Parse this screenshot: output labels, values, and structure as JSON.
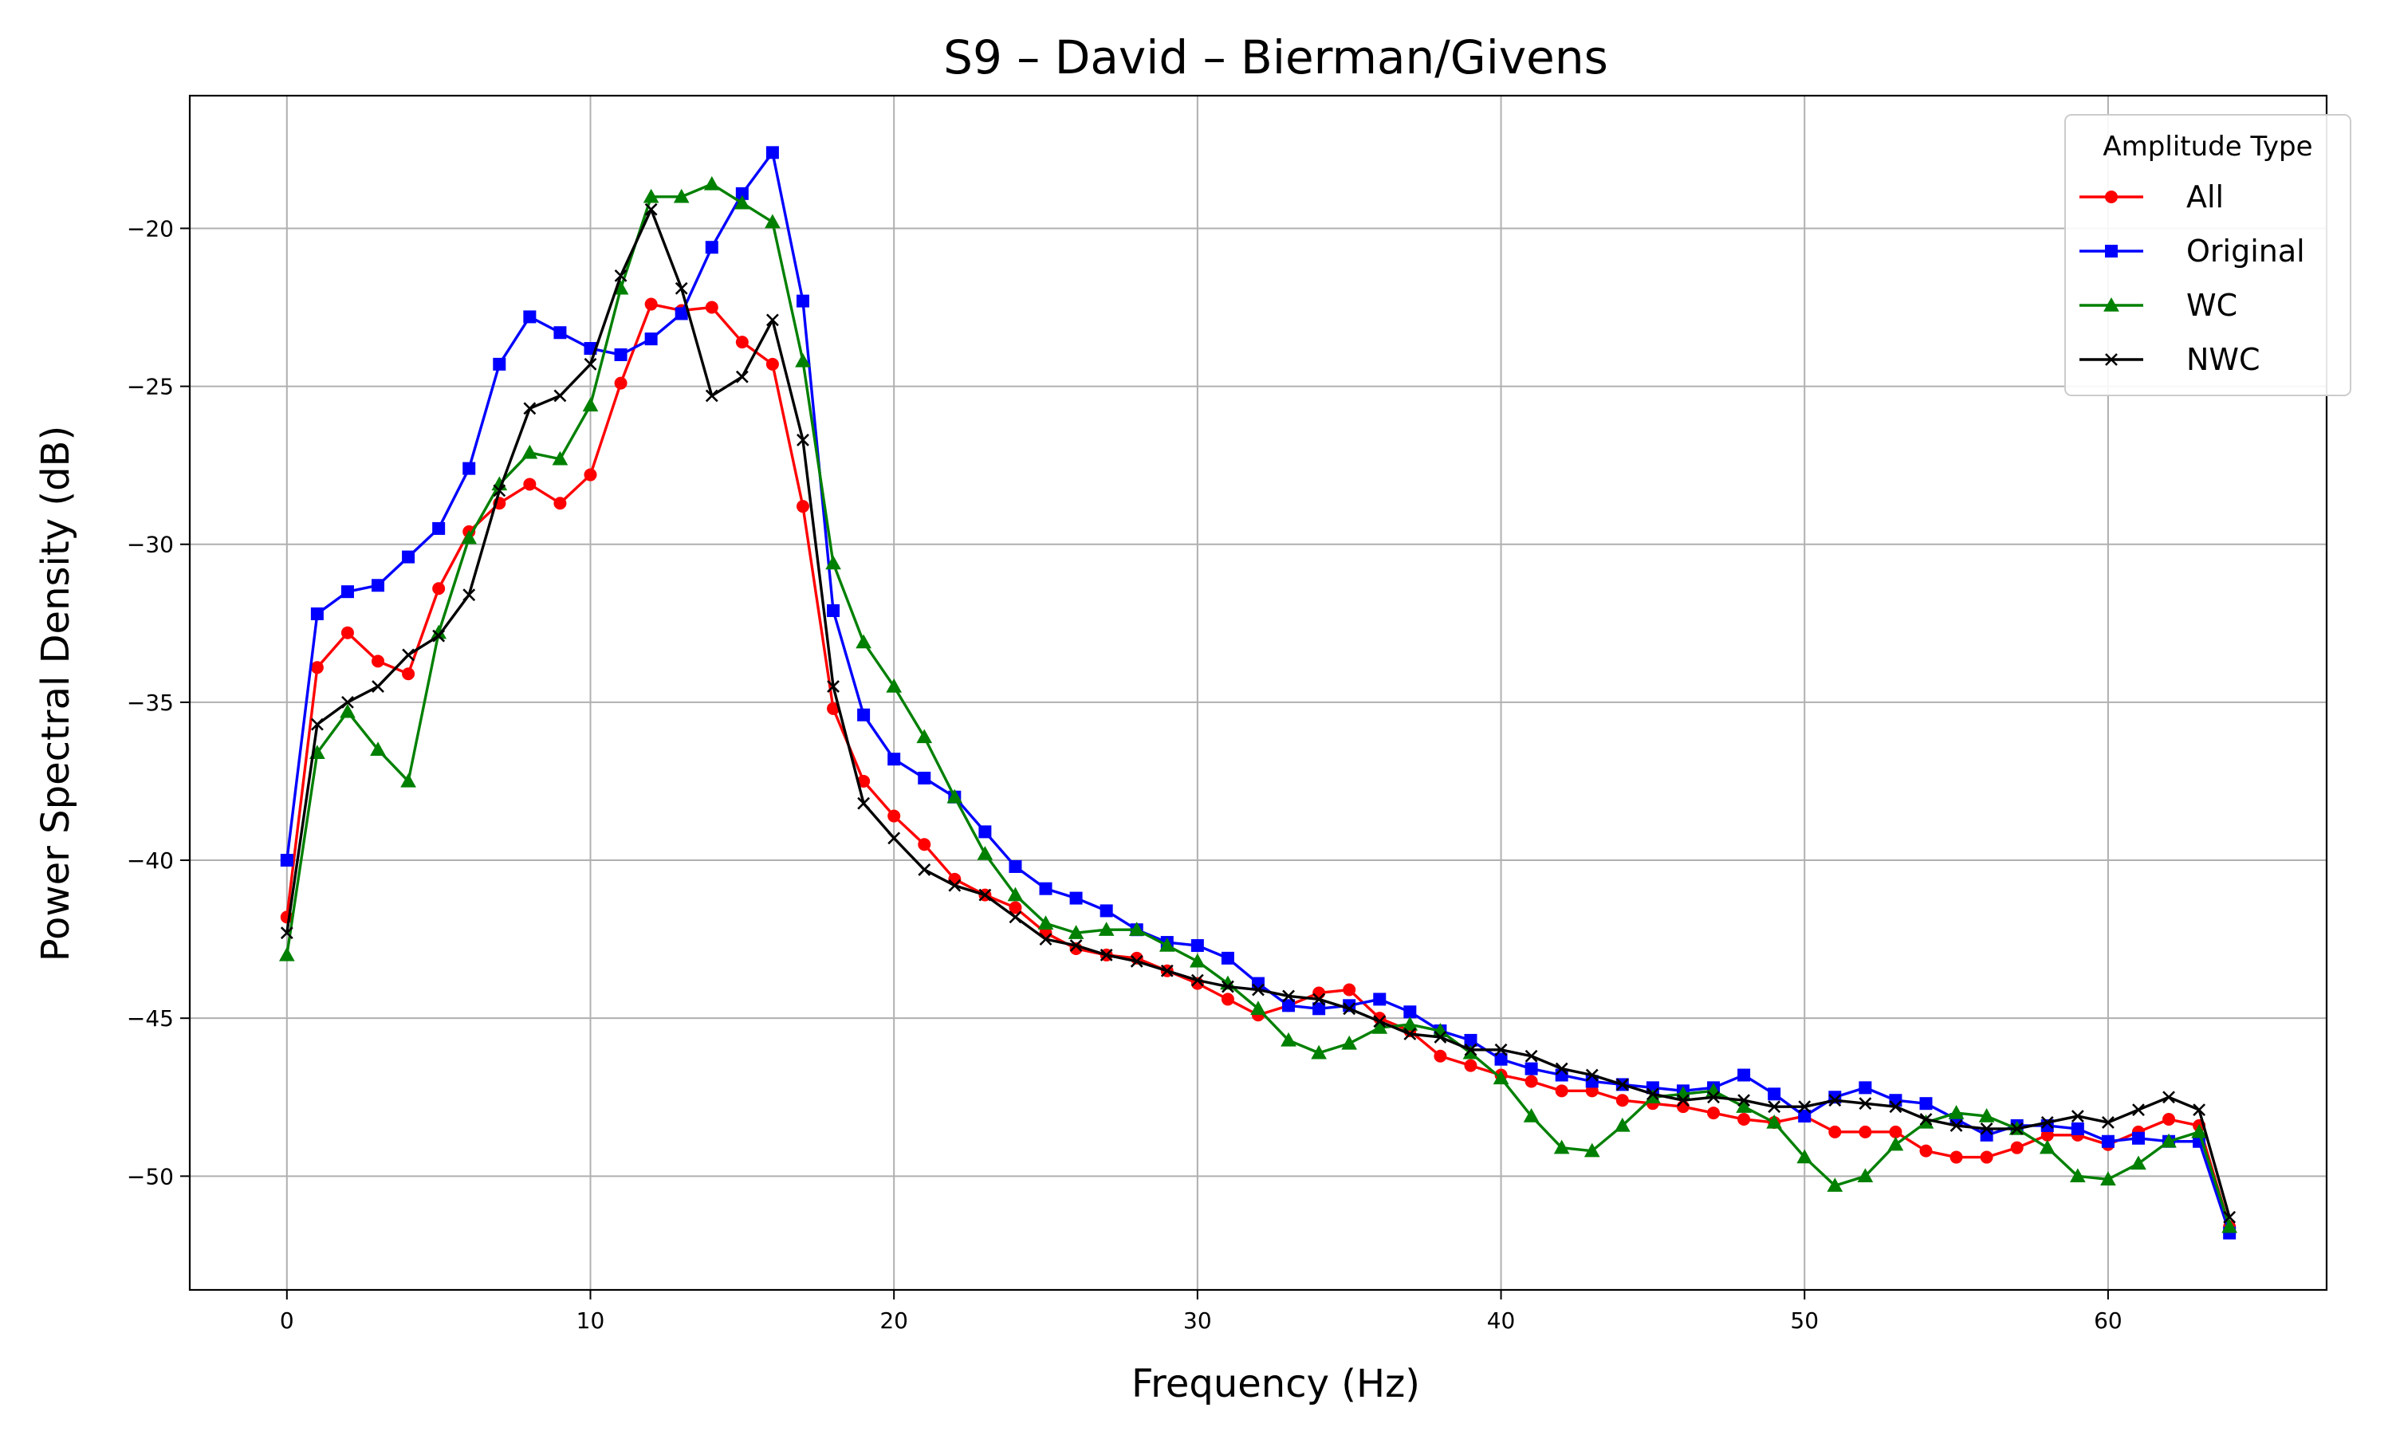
{
  "chart_data": {
    "type": "line",
    "title": "S9 – David – Bierman/Givens",
    "xlabel": "Frequency (Hz)",
    "ylabel": "Power Spectral Density (dB)",
    "xlim": [
      -3.2,
      67.2
    ],
    "ylim": [
      -53.6,
      -15.8
    ],
    "xticks": [
      0,
      10,
      20,
      30,
      40,
      50,
      60
    ],
    "yticks": [
      -50,
      -45,
      -40,
      -35,
      -30,
      -25,
      -20
    ],
    "xtick_labels": [
      "0",
      "10",
      "20",
      "30",
      "40",
      "50",
      "60"
    ],
    "ytick_labels": [
      "−50",
      "−45",
      "−40",
      "−35",
      "−30",
      "−25",
      "−20"
    ],
    "grid": true,
    "legend": {
      "title": "Amplitude Type",
      "position": "top-right"
    },
    "x": [
      0,
      1,
      2,
      3,
      4,
      5,
      6,
      7,
      8,
      9,
      10,
      11,
      12,
      13,
      14,
      15,
      16,
      17,
      18,
      19,
      20,
      21,
      22,
      23,
      24,
      25,
      26,
      27,
      28,
      29,
      30,
      31,
      32,
      33,
      34,
      35,
      36,
      37,
      38,
      39,
      40,
      41,
      42,
      43,
      44,
      45,
      46,
      47,
      48,
      49,
      50,
      51,
      52,
      53,
      54,
      55,
      56,
      57,
      58,
      59,
      60,
      61,
      62,
      63,
      64
    ],
    "series": [
      {
        "name": "All",
        "color": "#ff0000",
        "marker": "circle",
        "values": [
          -41.8,
          -33.9,
          -32.8,
          -33.7,
          -34.1,
          -31.4,
          -29.6,
          -28.7,
          -28.1,
          -28.7,
          -27.8,
          -24.9,
          -22.4,
          -22.6,
          -22.5,
          -23.6,
          -24.3,
          -28.8,
          -35.2,
          -37.5,
          -38.6,
          -39.5,
          -40.6,
          -41.1,
          -41.5,
          -42.3,
          -42.8,
          -43.0,
          -43.1,
          -43.5,
          -43.9,
          -44.4,
          -44.9,
          -44.6,
          -44.2,
          -44.1,
          -45.0,
          -45.4,
          -46.2,
          -46.5,
          -46.8,
          -47.0,
          -47.3,
          -47.3,
          -47.6,
          -47.7,
          -47.8,
          -48.0,
          -48.2,
          -48.3,
          -48.1,
          -48.6,
          -48.6,
          -48.6,
          -49.2,
          -49.4,
          -49.4,
          -49.1,
          -48.7,
          -48.7,
          -49.0,
          -48.6,
          -48.2,
          -48.4,
          -51.6
        ]
      },
      {
        "name": "Original",
        "color": "#0000ff",
        "marker": "square",
        "values": [
          -40.0,
          -32.2,
          -31.5,
          -31.3,
          -30.4,
          -29.5,
          -27.6,
          -24.3,
          -22.8,
          -23.3,
          -23.8,
          -24.0,
          -23.5,
          -22.7,
          -20.6,
          -18.9,
          -17.6,
          -22.3,
          -32.1,
          -35.4,
          -36.8,
          -37.4,
          -38.0,
          -39.1,
          -40.2,
          -40.9,
          -41.2,
          -41.6,
          -42.2,
          -42.6,
          -42.7,
          -43.1,
          -43.9,
          -44.6,
          -44.7,
          -44.6,
          -44.4,
          -44.8,
          -45.4,
          -45.7,
          -46.3,
          -46.6,
          -46.8,
          -47.0,
          -47.1,
          -47.2,
          -47.3,
          -47.2,
          -46.8,
          -47.4,
          -48.1,
          -47.5,
          -47.2,
          -47.6,
          -47.7,
          -48.2,
          -48.7,
          -48.4,
          -48.4,
          -48.5,
          -48.9,
          -48.8,
          -48.9,
          -48.9,
          -51.8
        ]
      },
      {
        "name": "WC",
        "color": "#008000",
        "marker": "triangle",
        "values": [
          -43.0,
          -36.6,
          -35.3,
          -36.5,
          -37.5,
          -32.8,
          -29.8,
          -28.1,
          -27.1,
          -27.3,
          -25.6,
          -21.9,
          -19.0,
          -19.0,
          -18.6,
          -19.2,
          -19.8,
          -24.2,
          -30.6,
          -33.1,
          -34.5,
          -36.1,
          -38.0,
          -39.8,
          -41.1,
          -42.0,
          -42.3,
          -42.2,
          -42.2,
          -42.7,
          -43.2,
          -43.9,
          -44.7,
          -45.7,
          -46.1,
          -45.8,
          -45.3,
          -45.2,
          -45.4,
          -46.1,
          -46.9,
          -48.1,
          -49.1,
          -49.2,
          -48.4,
          -47.5,
          -47.4,
          -47.3,
          -47.8,
          -48.3,
          -49.4,
          -50.3,
          -50.0,
          -49.0,
          -48.3,
          -48.0,
          -48.1,
          -48.5,
          -49.1,
          -50.0,
          -50.1,
          -49.6,
          -48.9,
          -48.6,
          -51.6
        ]
      },
      {
        "name": "NWC",
        "color": "#000000",
        "marker": "x",
        "values": [
          -42.3,
          -35.7,
          -35.0,
          -34.5,
          -33.5,
          -32.9,
          -31.6,
          -28.3,
          -25.7,
          -25.3,
          -24.3,
          -21.5,
          -19.4,
          -21.9,
          -25.3,
          -24.7,
          -22.9,
          -26.7,
          -34.5,
          -38.2,
          -39.3,
          -40.3,
          -40.8,
          -41.1,
          -41.8,
          -42.5,
          -42.7,
          -43.0,
          -43.2,
          -43.5,
          -43.8,
          -44.0,
          -44.1,
          -44.3,
          -44.4,
          -44.7,
          -45.1,
          -45.5,
          -45.6,
          -46.0,
          -46.0,
          -46.2,
          -46.6,
          -46.8,
          -47.1,
          -47.4,
          -47.6,
          -47.5,
          -47.6,
          -47.8,
          -47.8,
          -47.6,
          -47.7,
          -47.8,
          -48.2,
          -48.4,
          -48.5,
          -48.5,
          -48.3,
          -48.1,
          -48.3,
          -47.9,
          -47.5,
          -47.9,
          -51.3
        ]
      }
    ]
  }
}
